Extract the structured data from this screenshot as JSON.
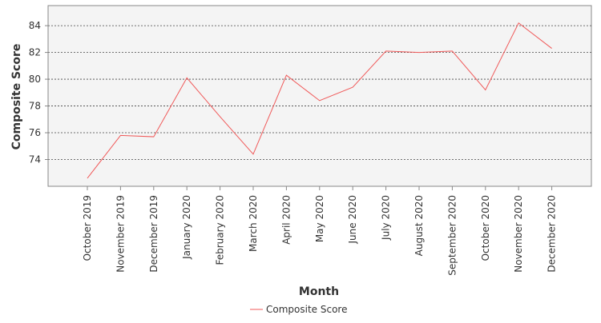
{
  "chart_data": {
    "type": "line",
    "title": "",
    "xlabel": "Month",
    "ylabel": "Composite Score",
    "categories": [
      "October 2019",
      "November 2019",
      "December 2019",
      "January 2020",
      "February 2020",
      "March 2020",
      "April 2020",
      "May 2020",
      "June 2020",
      "July 2020",
      "August 2020",
      "September 2020",
      "October 2020",
      "November 2020",
      "December 2020"
    ],
    "series": [
      {
        "name": "Composite Score",
        "color": "#f05a5a",
        "values": [
          72.6,
          75.8,
          75.7,
          80.1,
          77.2,
          74.4,
          80.3,
          78.4,
          79.4,
          82.1,
          82.0,
          82.1,
          79.2,
          84.2,
          82.3
        ]
      }
    ],
    "ylim": [
      72.0,
      85.5
    ],
    "yticks": [
      74,
      76,
      78,
      80,
      82,
      84
    ],
    "grid": true,
    "legend_position": "bottom",
    "colors": {
      "plot_background": "#f4f4f4",
      "gridline": "#444444",
      "axis": "#888888"
    }
  }
}
